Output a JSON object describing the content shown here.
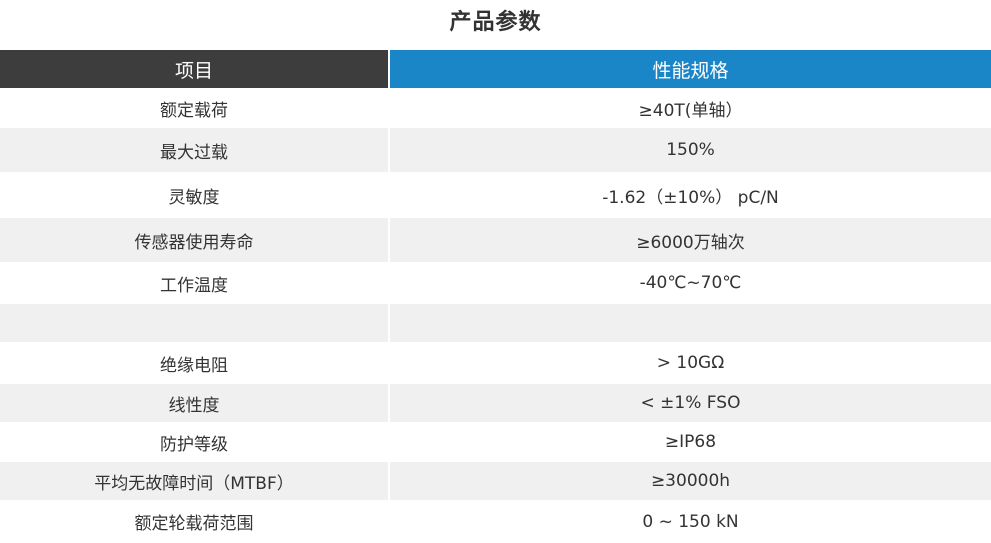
{
  "title": "产品参数",
  "table": {
    "headers": {
      "item": "项目",
      "spec": "性能规格"
    },
    "rows": [
      {
        "item": "额定载荷",
        "spec": "≥40T(单轴）"
      },
      {
        "item": "最大过载",
        "spec": "150%"
      },
      {
        "item": "灵敏度",
        "spec": "-1.62（±10%） pC/N"
      },
      {
        "item": "传感器使用寿命",
        "spec": "≥6000万轴次"
      },
      {
        "item": "工作温度",
        "spec": "-40℃~70℃"
      },
      {
        "item": "",
        "spec": ""
      },
      {
        "item": "绝缘电阻",
        "spec": "> 10GΩ"
      },
      {
        "item": "线性度",
        "spec": "< ±1% FSO"
      },
      {
        "item": "防护等级",
        "spec": "≥IP68"
      },
      {
        "item": "平均无故障时间（MTBF）",
        "spec": "≥30000h"
      },
      {
        "item": "额定轮载荷范围",
        "spec": "0 ~ 150 kN"
      }
    ]
  },
  "colors": {
    "header_left_bg": "#3d3d3d",
    "header_right_bg": "#1a86c8",
    "row_alt_bg": "#f0f0f0",
    "text": "#333333"
  }
}
